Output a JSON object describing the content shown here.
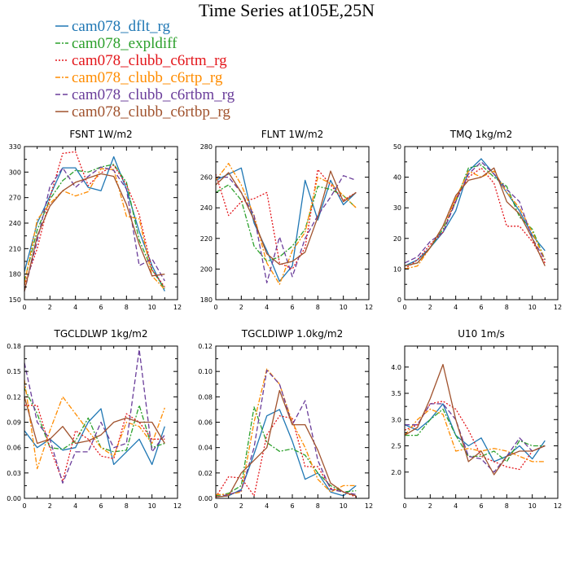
{
  "figure": {
    "title": "Time Series at105E,25N"
  },
  "legend": [
    {
      "name": "cam078_dflt_rg",
      "color": "#1f77b4",
      "dash": "solid"
    },
    {
      "name": "cam078_expldiff",
      "color": "#2ca02c",
      "dash": "dashdot"
    },
    {
      "name": "cam078_clubb_c6rtm_rg",
      "color": "#e3161b",
      "dash": "dotted"
    },
    {
      "name": "cam078_clubb_c6rtp_rg",
      "color": "#ff8c00",
      "dash": "dashdot"
    },
    {
      "name": "cam078_clubb_c6rtbm_rg",
      "color": "#6a3d9a",
      "dash": "dashed"
    },
    {
      "name": "cam078_clubb_c6rtbp_rg",
      "color": "#a0522d",
      "dash": "solid"
    }
  ],
  "chart_data": [
    {
      "type": "line",
      "title": "FSNT   1W/m2",
      "xlim": [
        0,
        12
      ],
      "xticks": [
        0,
        2,
        4,
        6,
        8,
        10,
        12
      ],
      "ylim": [
        150,
        330
      ],
      "yticks": [
        150,
        180,
        210,
        240,
        270,
        300,
        330
      ],
      "ytick_labels": [
        "150",
        "180",
        "210",
        "240",
        "270",
        "300",
        "330"
      ],
      "x": [
        0,
        1,
        2,
        3,
        4,
        5,
        6,
        7,
        8,
        9,
        10,
        11
      ],
      "series": [
        {
          "name": "cam078_dflt_rg",
          "values": [
            183,
            240,
            272,
            305,
            305,
            282,
            278,
            318,
            280,
            230,
            190,
            160
          ]
        },
        {
          "name": "cam078_expldiff",
          "values": [
            172,
            232,
            268,
            290,
            302,
            300,
            306,
            309,
            288,
            220,
            185,
            163
          ]
        },
        {
          "name": "cam078_clubb_c6rtm_rg",
          "values": [
            167,
            210,
            270,
            322,
            324,
            284,
            299,
            308,
            285,
            250,
            185,
            165
          ]
        },
        {
          "name": "cam078_clubb_c6rtp_rg",
          "values": [
            168,
            244,
            263,
            278,
            272,
            277,
            304,
            303,
            248,
            245,
            178,
            162
          ]
        },
        {
          "name": "cam078_clubb_c6rtbm_rg",
          "values": [
            160,
            219,
            283,
            305,
            282,
            295,
            306,
            302,
            280,
            190,
            198,
            172
          ]
        },
        {
          "name": "cam078_clubb_c6rtbp_rg",
          "values": [
            160,
            225,
            260,
            278,
            288,
            293,
            298,
            295,
            262,
            215,
            178,
            180
          ]
        }
      ]
    },
    {
      "type": "line",
      "title": "FLNT   1W/m2",
      "xlim": [
        0,
        12
      ],
      "xticks": [
        0,
        2,
        4,
        6,
        8,
        10,
        12
      ],
      "ylim": [
        180,
        280
      ],
      "yticks": [
        180,
        200,
        220,
        240,
        260,
        280
      ],
      "ytick_labels": [
        "180",
        "200",
        "220",
        "240",
        "260",
        "280"
      ],
      "x": [
        0,
        1,
        2,
        3,
        4,
        5,
        6,
        7,
        8,
        9,
        10,
        11
      ],
      "series": [
        {
          "name": "cam078_dflt_rg",
          "values": [
            258,
            262,
            266,
            230,
            212,
            192,
            202,
            258,
            232,
            258,
            242,
            250
          ]
        },
        {
          "name": "cam078_expldiff",
          "values": [
            250,
            255,
            245,
            215,
            205,
            208,
            215,
            226,
            254,
            252,
            248,
            240
          ]
        },
        {
          "name": "cam078_clubb_c6rtm_rg",
          "values": [
            262,
            235,
            244,
            246,
            250,
            204,
            200,
            214,
            265,
            255,
            245,
            250
          ]
        },
        {
          "name": "cam078_clubb_c6rtp_rg",
          "values": [
            258,
            269,
            255,
            235,
            204,
            190,
            212,
            224,
            260,
            256,
            248,
            240
          ]
        },
        {
          "name": "cam078_clubb_c6rtbm_rg",
          "values": [
            260,
            260,
            250,
            235,
            191,
            221,
            195,
            220,
            235,
            247,
            261,
            258
          ]
        },
        {
          "name": "cam078_clubb_c6rtbp_rg",
          "values": [
            255,
            263,
            250,
            232,
            210,
            203,
            205,
            211,
            234,
            264,
            244,
            250
          ]
        }
      ]
    },
    {
      "type": "line",
      "title": "TMQ   1kg/m2",
      "xlim": [
        0,
        12
      ],
      "xticks": [
        0,
        2,
        4,
        6,
        8,
        10,
        12
      ],
      "ylim": [
        0,
        50
      ],
      "yticks": [
        0,
        10,
        20,
        30,
        40,
        50
      ],
      "ytick_labels": [
        "0",
        "10",
        "20",
        "30",
        "40",
        "50"
      ],
      "x": [
        0,
        1,
        2,
        3,
        4,
        5,
        6,
        7,
        8,
        9,
        10,
        11
      ],
      "series": [
        {
          "name": "cam078_dflt_rg",
          "values": [
            11,
            13,
            17,
            22,
            29,
            42,
            46,
            41,
            35,
            29,
            21,
            16
          ]
        },
        {
          "name": "cam078_expldiff",
          "values": [
            11,
            12,
            17,
            23,
            32,
            43,
            44,
            40,
            37,
            27,
            23,
            13
          ]
        },
        {
          "name": "cam078_clubb_c6rtm_rg",
          "values": [
            10,
            13,
            18,
            22,
            33,
            40,
            43,
            38,
            24,
            24,
            19,
            12
          ]
        },
        {
          "name": "cam078_clubb_c6rtp_rg",
          "values": [
            10,
            11,
            17,
            24,
            33,
            42,
            40,
            42,
            35,
            30,
            22,
            13
          ]
        },
        {
          "name": "cam078_clubb_c6rtbm_rg",
          "values": [
            12,
            14,
            19,
            22,
            32,
            41,
            45,
            41,
            36,
            32,
            20,
            13
          ]
        },
        {
          "name": "cam078_clubb_c6rtbp_rg",
          "values": [
            11,
            12,
            17,
            24,
            34,
            39,
            40,
            43,
            32,
            28,
            20,
            11
          ]
        }
      ]
    },
    {
      "type": "line",
      "title": "TGCLDLWP   1kg/m2",
      "xlim": [
        0,
        12
      ],
      "xticks": [
        0,
        2,
        4,
        6,
        8,
        10,
        12
      ],
      "ylim": [
        0,
        0.18
      ],
      "yticks": [
        0,
        0.03,
        0.06,
        0.09,
        0.12,
        0.15,
        0.18
      ],
      "ytick_labels": [
        "0.00",
        "0.03",
        "0.06",
        "0.09",
        "0.12",
        "0.15",
        "0.18"
      ],
      "x": [
        0,
        1,
        2,
        3,
        4,
        5,
        6,
        7,
        8,
        9,
        10,
        11
      ],
      "series": [
        {
          "name": "cam078_dflt_rg",
          "values": [
            0.08,
            0.06,
            0.07,
            0.057,
            0.06,
            0.09,
            0.106,
            0.04,
            0.055,
            0.07,
            0.04,
            0.085
          ]
        },
        {
          "name": "cam078_expldiff",
          "values": [
            0.13,
            0.1,
            0.06,
            0.058,
            0.068,
            0.095,
            0.06,
            0.055,
            0.057,
            0.11,
            0.06,
            0.065
          ]
        },
        {
          "name": "cam078_clubb_c6rtm_rg",
          "values": [
            0.11,
            0.11,
            0.06,
            0.02,
            0.08,
            0.07,
            0.05,
            0.047,
            0.1,
            0.09,
            0.07,
            0.07
          ]
        },
        {
          "name": "cam078_clubb_c6rtp_rg",
          "values": [
            0.14,
            0.035,
            0.08,
            0.12,
            0.1,
            0.08,
            0.06,
            0.05,
            0.09,
            0.085,
            0.065,
            0.107
          ]
        },
        {
          "name": "cam078_clubb_c6rtbm_rg",
          "values": [
            0.16,
            0.09,
            0.07,
            0.018,
            0.055,
            0.055,
            0.09,
            0.06,
            0.065,
            0.176,
            0.055,
            0.075
          ]
        },
        {
          "name": "cam078_clubb_c6rtbp_rg",
          "values": [
            0.12,
            0.065,
            0.07,
            0.085,
            0.065,
            0.068,
            0.075,
            0.09,
            0.095,
            0.09,
            0.09,
            0.065
          ]
        }
      ]
    },
    {
      "type": "line",
      "title": "TGCLDIWP   1.0kg/m2",
      "xlim": [
        0,
        12
      ],
      "xticks": [
        0,
        2,
        4,
        6,
        8,
        10,
        12
      ],
      "ylim": [
        0,
        0.12
      ],
      "yticks": [
        0,
        0.02,
        0.04,
        0.06,
        0.08,
        0.1,
        0.12
      ],
      "ytick_labels": [
        "0.00",
        "0.02",
        "0.04",
        "0.06",
        "0.08",
        "0.10",
        "0.12"
      ],
      "x": [
        0,
        1,
        2,
        3,
        4,
        5,
        6,
        7,
        8,
        9,
        10,
        11
      ],
      "series": [
        {
          "name": "cam078_dflt_rg",
          "values": [
            0.001,
            0.002,
            0.007,
            0.035,
            0.065,
            0.07,
            0.045,
            0.015,
            0.02,
            0.005,
            0.002,
            0.01
          ]
        },
        {
          "name": "cam078_expldiff",
          "values": [
            0.002,
            0.004,
            0.01,
            0.072,
            0.044,
            0.037,
            0.039,
            0.034,
            0.02,
            0.01,
            0.005,
            0.006
          ]
        },
        {
          "name": "cam078_clubb_c6rtm_rg",
          "values": [
            0.001,
            0.017,
            0.016,
            0.002,
            0.05,
            0.065,
            0.063,
            0.025,
            0.025,
            0.008,
            0.005,
            0.001
          ]
        },
        {
          "name": "cam078_clubb_c6rtp_rg",
          "values": [
            0.003,
            0.003,
            0.005,
            0.06,
            0.102,
            0.09,
            0.06,
            0.04,
            0.015,
            0.005,
            0.01,
            0.01
          ]
        },
        {
          "name": "cam078_clubb_c6rtbm_rg",
          "values": [
            0.001,
            0.003,
            0.006,
            0.04,
            0.101,
            0.09,
            0.058,
            0.077,
            0.03,
            0.007,
            0.005,
            0.003
          ]
        },
        {
          "name": "cam078_clubb_c6rtbp_rg",
          "values": [
            0.001,
            0.002,
            0.02,
            0.03,
            0.04,
            0.085,
            0.058,
            0.058,
            0.038,
            0.012,
            0.005,
            0.002
          ]
        }
      ]
    },
    {
      "type": "line",
      "title": "U10   1m/s",
      "xlim": [
        0,
        12
      ],
      "xticks": [
        0,
        2,
        4,
        6,
        8,
        10,
        12
      ],
      "ylim": [
        1.5,
        4.4
      ],
      "yticks": [
        2.0,
        2.5,
        3.0,
        3.5,
        4.0
      ],
      "ytick_labels": [
        "2.0",
        "2.5",
        "3.0",
        "3.5",
        "4.0"
      ],
      "x": [
        0,
        1,
        2,
        3,
        4,
        5,
        6,
        7,
        8,
        9,
        10,
        11
      ],
      "series": [
        {
          "name": "cam078_dflt_rg",
          "values": [
            2.9,
            2.8,
            3.0,
            3.3,
            2.7,
            2.5,
            2.65,
            2.2,
            2.3,
            2.5,
            2.25,
            2.6
          ]
        },
        {
          "name": "cam078_expldiff",
          "values": [
            2.7,
            2.7,
            3.0,
            3.2,
            2.7,
            2.3,
            2.3,
            2.4,
            2.2,
            2.6,
            2.5,
            2.5
          ]
        },
        {
          "name": "cam078_clubb_c6rtm_rg",
          "values": [
            2.8,
            2.9,
            3.3,
            3.35,
            3.2,
            2.8,
            2.3,
            2.2,
            2.1,
            2.05,
            2.4,
            2.5
          ]
        },
        {
          "name": "cam078_clubb_c6rtp_rg",
          "values": [
            2.7,
            3.0,
            3.2,
            3.1,
            2.4,
            2.45,
            2.4,
            2.45,
            2.4,
            2.3,
            2.2,
            2.2
          ]
        },
        {
          "name": "cam078_clubb_c6rtbm_rg",
          "values": [
            2.9,
            2.9,
            3.3,
            3.3,
            3.0,
            2.3,
            2.25,
            2.0,
            2.3,
            2.65,
            2.4,
            2.5
          ]
        },
        {
          "name": "cam078_clubb_c6rtbp_rg",
          "values": [
            2.7,
            2.85,
            3.4,
            4.05,
            3.0,
            2.2,
            2.4,
            1.95,
            2.3,
            2.4,
            2.4,
            2.5
          ]
        }
      ]
    }
  ]
}
